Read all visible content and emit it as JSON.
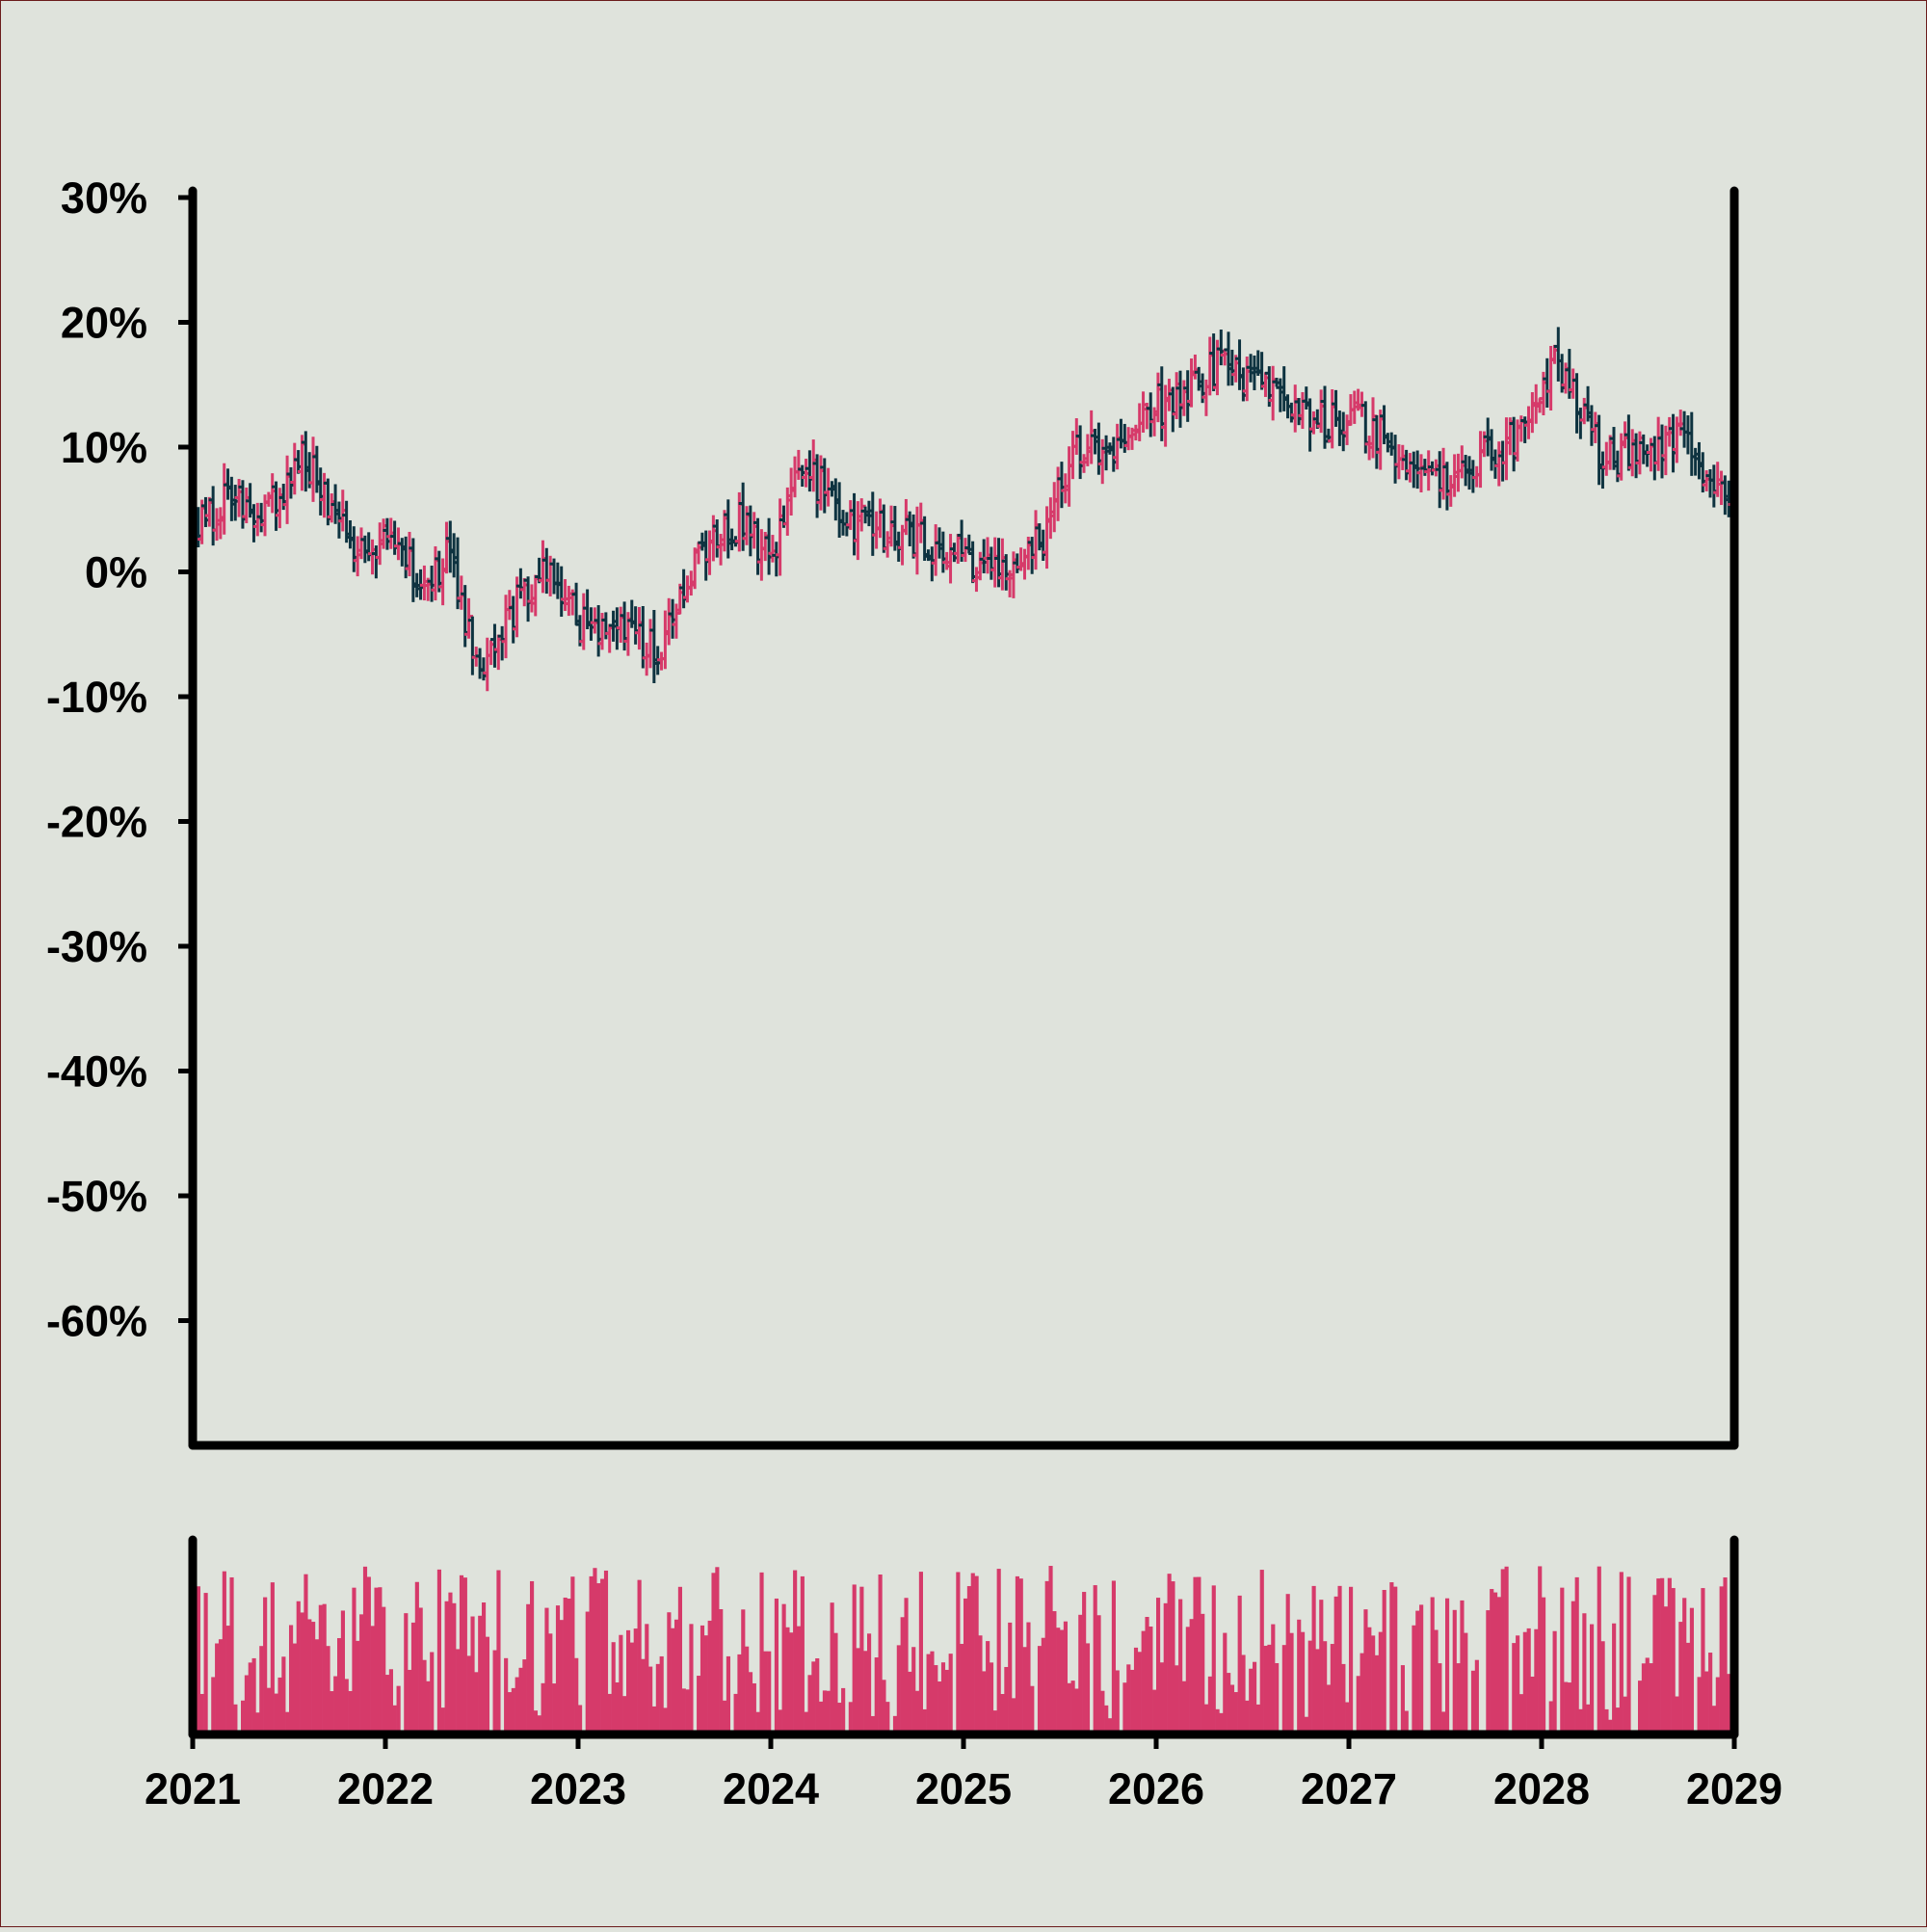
{
  "chart_data": {
    "type": "ohlc",
    "title": "",
    "xlabel": "",
    "ylabel": "",
    "x_ticks": [
      "2021",
      "2022",
      "2023",
      "2024",
      "2025",
      "2026",
      "2027",
      "2028",
      "2029"
    ],
    "x_range": [
      2021,
      2029
    ],
    "y_ticks": [
      "30%",
      "20%",
      "10%",
      "0%",
      "-10%",
      "-20%",
      "-30%",
      "-40%",
      "-50%",
      "-60%"
    ],
    "y_tick_values": [
      30,
      20,
      10,
      0,
      -10,
      -20,
      -30,
      -40,
      -50,
      -60
    ],
    "ylim": [
      -70,
      30
    ],
    "grid": false,
    "legend": "none",
    "colors": {
      "background": "#dfe3dc",
      "up": "#d63a6a",
      "down": "#0e3340",
      "volume": "#d63a6a",
      "axis": "#000000",
      "border": "#6b1c1c"
    },
    "series": [
      {
        "kind": "price",
        "interval": "weekly",
        "trend_points": [
          {
            "x": "2021-01",
            "y": 3
          },
          {
            "x": "2021-03",
            "y": 6
          },
          {
            "x": "2021-05",
            "y": 4
          },
          {
            "x": "2021-08",
            "y": 9
          },
          {
            "x": "2021-11",
            "y": 2
          },
          {
            "x": "2022-01",
            "y": 3
          },
          {
            "x": "2022-03",
            "y": 0
          },
          {
            "x": "2022-05",
            "y": 1
          },
          {
            "x": "2022-07",
            "y": -9
          },
          {
            "x": "2022-09",
            "y": -3
          },
          {
            "x": "2022-11",
            "y": 1
          },
          {
            "x": "2023-01",
            "y": -4
          },
          {
            "x": "2023-04",
            "y": -5
          },
          {
            "x": "2023-06",
            "y": -6
          },
          {
            "x": "2023-08",
            "y": 0
          },
          {
            "x": "2023-11",
            "y": 4
          },
          {
            "x": "2024-01",
            "y": 1
          },
          {
            "x": "2024-03",
            "y": 9
          },
          {
            "x": "2024-04",
            "y": 7
          },
          {
            "x": "2024-06",
            "y": 4
          },
          {
            "x": "2024-09",
            "y": 3
          },
          {
            "x": "2024-12",
            "y": 2
          },
          {
            "x": "2025-03",
            "y": 0
          },
          {
            "x": "2025-06",
            "y": 3
          },
          {
            "x": "2025-08",
            "y": 10
          },
          {
            "x": "2025-10",
            "y": 10
          },
          {
            "x": "2026-01",
            "y": 13
          },
          {
            "x": "2026-05",
            "y": 17
          },
          {
            "x": "2026-08",
            "y": 14
          },
          {
            "x": "2026-11",
            "y": 12
          },
          {
            "x": "2027-02",
            "y": 12
          },
          {
            "x": "2027-05",
            "y": 8
          },
          {
            "x": "2027-08",
            "y": 7
          },
          {
            "x": "2027-10",
            "y": 10
          },
          {
            "x": "2027-12",
            "y": 11
          },
          {
            "x": "2028-02",
            "y": 17
          },
          {
            "x": "2028-05",
            "y": 9
          },
          {
            "x": "2028-07",
            "y": 10
          },
          {
            "x": "2028-10",
            "y": 11
          },
          {
            "x": "2028-12",
            "y": 6
          }
        ]
      },
      {
        "kind": "volume",
        "interval": "weekly",
        "relative_range": [
          0,
          1
        ]
      }
    ]
  }
}
